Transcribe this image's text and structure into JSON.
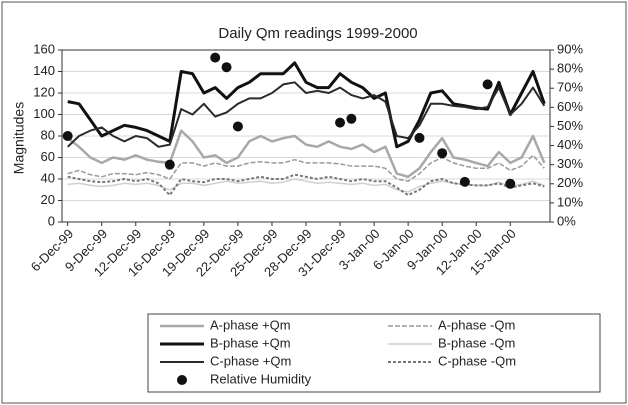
{
  "chart_data": {
    "type": "line",
    "title": "Daily Qm readings 1999-2000",
    "ylabel": "Magnitudes",
    "categories": [
      "6-Dec-99",
      null,
      null,
      "9-Dec-99",
      null,
      null,
      "12-Dec-99",
      null,
      null,
      "16-Dec-99",
      null,
      null,
      "19-Dec-99",
      null,
      null,
      "22-Dec-99",
      null,
      null,
      "25-Dec-99",
      null,
      null,
      "28-Dec-99",
      null,
      null,
      "31-Dec-99",
      null,
      null,
      "3-Jan-00",
      null,
      null,
      "6-Jan-00",
      null,
      null,
      "9-Jan-00",
      null,
      null,
      "12-Jan-00",
      null,
      null,
      "15-Jan-00",
      null,
      null,
      null
    ],
    "ylim": [
      0,
      160
    ],
    "yticks": [
      0,
      20,
      40,
      60,
      80,
      100,
      120,
      140,
      160
    ],
    "y2lim": [
      0,
      90
    ],
    "y2ticks": [
      {
        "value": 0,
        "label": "0%"
      },
      {
        "value": 10,
        "label": "10%"
      },
      {
        "value": 20,
        "label": "20%"
      },
      {
        "value": 30,
        "label": "30%"
      },
      {
        "value": 40,
        "label": "40%"
      },
      {
        "value": 50,
        "label": "50%"
      },
      {
        "value": 60,
        "label": "60%"
      },
      {
        "value": 70,
        "label": "70%"
      },
      {
        "value": 80,
        "label": "80%"
      },
      {
        "value": 90,
        "label": "90%"
      }
    ],
    "grid": true,
    "legend": "bottom",
    "series": [
      {
        "name": "A-phase +Qm",
        "color": "#a8a8a8",
        "values": [
          78,
          70,
          60,
          55,
          60,
          58,
          62,
          58,
          56,
          55,
          85,
          75,
          60,
          62,
          55,
          60,
          75,
          80,
          75,
          78,
          80,
          72,
          70,
          75,
          70,
          68,
          72,
          65,
          70,
          45,
          42,
          50,
          65,
          78,
          60,
          58,
          55,
          52,
          65,
          55,
          60,
          80,
          55
        ]
      },
      {
        "name": "B-phase +Qm",
        "color": "#111111",
        "values": [
          112,
          110,
          95,
          80,
          85,
          90,
          88,
          85,
          80,
          75,
          140,
          138,
          120,
          125,
          115,
          125,
          130,
          138,
          138,
          138,
          148,
          130,
          125,
          125,
          138,
          130,
          125,
          115,
          120,
          70,
          75,
          95,
          120,
          122,
          110,
          108,
          106,
          105,
          130,
          100,
          120,
          140,
          110
        ]
      },
      {
        "name": "C-phase +Qm",
        "color": "#2a2a2a",
        "values": [
          70,
          80,
          85,
          88,
          80,
          75,
          80,
          78,
          70,
          72,
          105,
          100,
          110,
          98,
          102,
          110,
          115,
          115,
          120,
          128,
          130,
          120,
          122,
          120,
          125,
          118,
          115,
          118,
          112,
          80,
          78,
          90,
          110,
          110,
          108,
          107,
          105,
          107,
          125,
          100,
          110,
          125,
          108
        ]
      },
      {
        "name": "A-phase -Qm",
        "color": "#9a9a9a",
        "values": [
          45,
          48,
          44,
          42,
          45,
          45,
          44,
          46,
          44,
          40,
          55,
          55,
          52,
          55,
          52,
          52,
          55,
          56,
          55,
          55,
          58,
          55,
          55,
          55,
          54,
          52,
          52,
          52,
          50,
          40,
          38,
          45,
          55,
          60,
          55,
          52,
          50,
          50,
          55,
          48,
          52,
          62,
          50
        ]
      },
      {
        "name": "B-phase -Qm",
        "color": "#cfcfcf",
        "values": [
          35,
          36,
          34,
          33,
          34,
          36,
          35,
          36,
          34,
          30,
          36,
          36,
          34,
          36,
          38,
          36,
          37,
          38,
          36,
          37,
          40,
          38,
          36,
          37,
          36,
          35,
          36,
          34,
          35,
          30,
          28,
          33,
          36,
          38,
          36,
          35,
          34,
          34,
          37,
          33,
          35,
          38,
          34
        ]
      },
      {
        "name": "C-phase -Qm",
        "color": "#777777",
        "values": [
          42,
          40,
          38,
          37,
          38,
          40,
          38,
          40,
          36,
          25,
          40,
          38,
          37,
          40,
          40,
          38,
          40,
          42,
          40,
          40,
          44,
          42,
          40,
          42,
          40,
          38,
          40,
          38,
          38,
          32,
          25,
          30,
          38,
          40,
          36,
          35,
          34,
          34,
          36,
          32,
          34,
          36,
          33
        ]
      },
      {
        "name": "Relative Humidity",
        "color": "#111111",
        "axis": "y2",
        "mode": "markers",
        "values": [
          45,
          null,
          null,
          null,
          null,
          null,
          null,
          null,
          null,
          30,
          null,
          null,
          null,
          86,
          81,
          50,
          null,
          null,
          null,
          null,
          null,
          null,
          null,
          null,
          52,
          54,
          null,
          null,
          null,
          null,
          null,
          44,
          null,
          36,
          null,
          21,
          null,
          72,
          null,
          20,
          null,
          null,
          null
        ]
      }
    ]
  }
}
